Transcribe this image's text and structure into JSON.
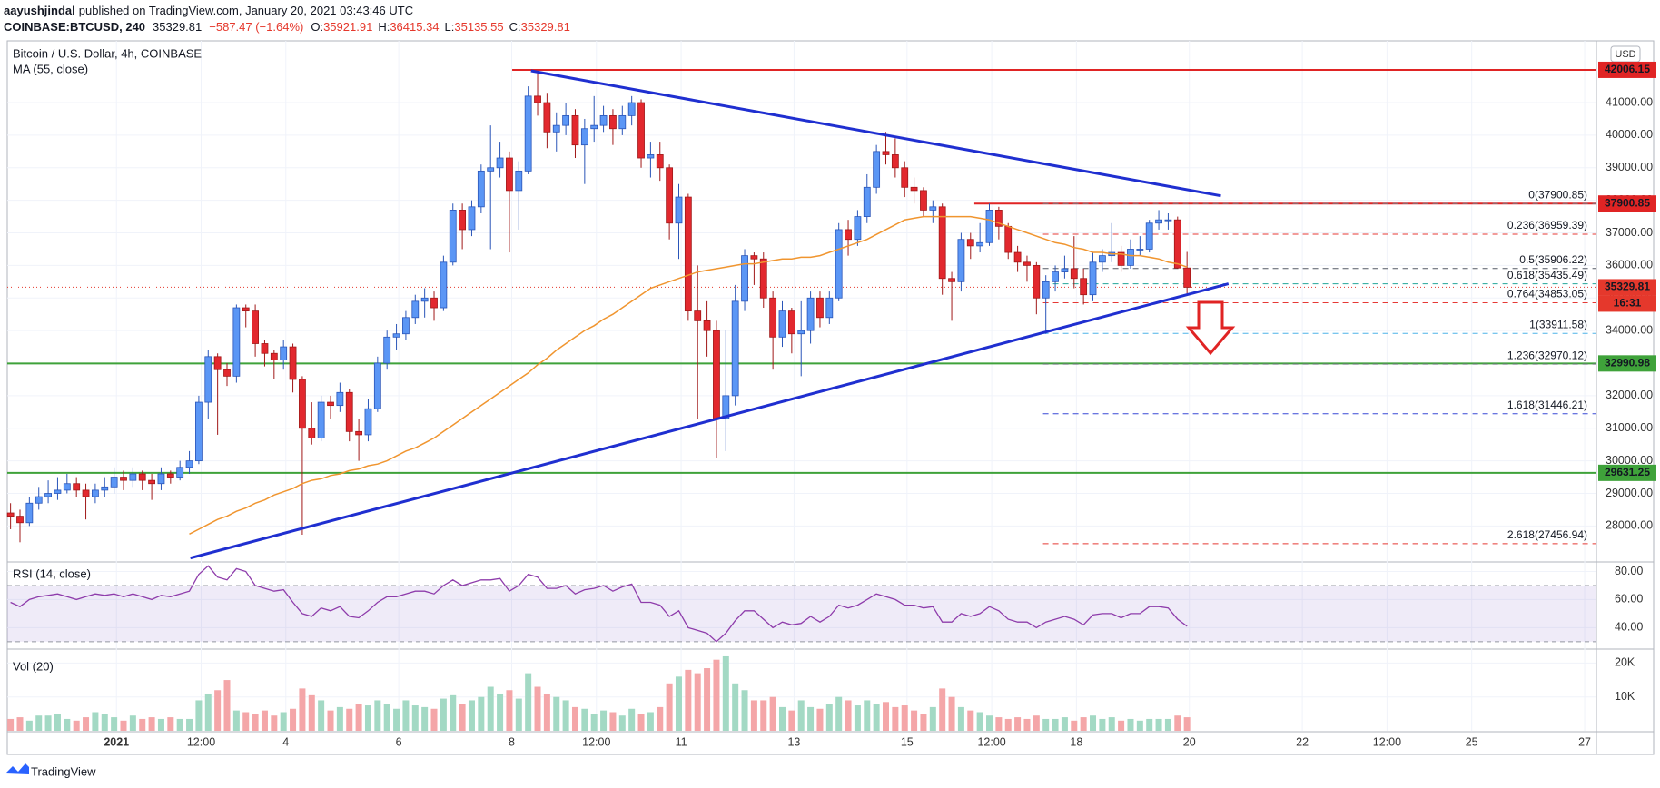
{
  "header": {
    "author": "aayushjindal",
    "published": "published on TradingView.com, January 20, 2021 03:43:46 UTC",
    "symbol": "COINBASE:BTCUSD, 240",
    "last": 35329.81,
    "change": "−587.47 (−1.64%)",
    "ohlc": [
      {
        "label": "O:",
        "value": 35921.91
      },
      {
        "label": "H:",
        "value": 36415.34
      },
      {
        "label": "L:",
        "value": 35135.55
      },
      {
        "label": "C:",
        "value": 35329.81
      }
    ]
  },
  "brand": "TradingView",
  "chart_data": {
    "type": "candlestick",
    "title": "Bitcoin / U.S. Dollar, 4h, COINBASE",
    "currency": "USD",
    "up_color": "#5b96f5",
    "down_color": "#e2282e",
    "xlim": [
      -0.35,
      168.5
    ],
    "xticks": [
      {
        "value": 11.25,
        "label": "2021"
      },
      {
        "value": 20.25,
        "label": "12:00"
      },
      {
        "value": 29.25,
        "label": "4"
      },
      {
        "value": 41.25,
        "label": "6"
      },
      {
        "value": 53.25,
        "label": "8"
      },
      {
        "value": 62.25,
        "label": "12:00"
      },
      {
        "value": 71.25,
        "label": "11"
      },
      {
        "value": 83.25,
        "label": "13"
      },
      {
        "value": 95.25,
        "label": "15"
      },
      {
        "value": 104.25,
        "label": "12:00"
      },
      {
        "value": 113.25,
        "label": "18"
      },
      {
        "value": 125.25,
        "label": "20"
      },
      {
        "value": 137.25,
        "label": "22"
      },
      {
        "value": 146.25,
        "label": "12:00"
      },
      {
        "value": 155.25,
        "label": "25"
      },
      {
        "value": 167.25,
        "label": "27"
      }
    ],
    "ylim": [
      26923,
      42841
    ],
    "yticks": [
      {
        "value": 28000,
        "label": "28000.00"
      },
      {
        "value": 29000,
        "label": "29000.00"
      },
      {
        "value": 30000,
        "label": "30000.00"
      },
      {
        "value": 31000,
        "label": "31000.00"
      },
      {
        "value": 32000,
        "label": "32000.00"
      },
      {
        "value": 33000,
        "label": "33000.00"
      },
      {
        "value": 34000,
        "label": "34000.00"
      },
      {
        "value": 35000,
        "label": "35000.00"
      },
      {
        "value": 36000,
        "label": "36000.00"
      },
      {
        "value": 37000,
        "label": "37000.00"
      },
      {
        "value": 38000,
        "label": "38000.00"
      },
      {
        "value": 39000,
        "label": "39000.00"
      },
      {
        "value": 40000,
        "label": "40000.00"
      },
      {
        "value": 41000,
        "label": "41000.00"
      }
    ],
    "grid": true,
    "candles": {
      "open": 28400,
      "close": [
        28300,
        28100,
        28700,
        28900,
        29000,
        29100,
        29300,
        29100,
        28900,
        29100,
        29200,
        29500,
        29400,
        29600,
        29400,
        29300,
        29600,
        29500,
        29800,
        30000,
        31800,
        33200,
        32800,
        32600,
        34700,
        34600,
        33600,
        33300,
        33100,
        33500,
        32500,
        31000,
        30700,
        31800,
        31700,
        32100,
        30900,
        30800,
        31600,
        33000,
        33800,
        33900,
        34400,
        34900,
        35000,
        34700,
        36100,
        37700,
        37100,
        37800,
        38900,
        39000,
        39300,
        38300,
        38900,
        41200,
        41000,
        40100,
        40300,
        40600,
        39700,
        40200,
        40300,
        40600,
        40200,
        40600,
        41000,
        39300,
        39400,
        39000,
        37300,
        38100,
        34600,
        34300,
        34000,
        31300,
        32000,
        34900,
        36300,
        36200,
        35000,
        33800,
        34600,
        33900,
        34000,
        35000,
        34400,
        35000,
        37100,
        36800,
        37500,
        38400,
        39500,
        39400,
        39000,
        38400,
        38300,
        37700,
        37800,
        35600,
        35500,
        36800,
        36600,
        36700,
        37700,
        37200,
        36400,
        36100,
        36000,
        35000,
        35500,
        35800,
        35900,
        35600,
        35100,
        36100,
        36300,
        36400,
        36000,
        36500,
        36500,
        37300,
        37400,
        37400,
        35921.91,
        35329.81
      ],
      "high": [
        28700,
        28500,
        28900,
        29200,
        29400,
        29500,
        29600,
        29500,
        29300,
        29300,
        29500,
        29800,
        29700,
        29800,
        29700,
        29600,
        29800,
        29700,
        30000,
        30300,
        32000,
        33400,
        33300,
        33000,
        34800,
        34800,
        34800,
        33700,
        33400,
        33700,
        33600,
        32600,
        31800,
        32000,
        32000,
        32400,
        32200,
        31300,
        31900,
        33200,
        34000,
        34200,
        34600,
        35100,
        35300,
        35200,
        36300,
        37900,
        37900,
        38000,
        39100,
        40300,
        39800,
        39500,
        39200,
        41500,
        41950,
        41300,
        40700,
        41000,
        40800,
        40500,
        41200,
        40900,
        40800,
        40900,
        41200,
        41100,
        39800,
        39800,
        39100,
        38500,
        38200,
        36000,
        34900,
        34300,
        34000,
        35400,
        36500,
        36400,
        36400,
        35200,
        34900,
        34700,
        34900,
        35200,
        35200,
        35200,
        37300,
        37400,
        37700,
        38800,
        39700,
        40100,
        39900,
        39200,
        38700,
        38400,
        38000,
        37900,
        35800,
        37000,
        37000,
        37300,
        37900,
        37800,
        37300,
        36600,
        36300,
        36100,
        35700,
        36000,
        36300,
        36900,
        35900,
        36400,
        36500,
        37300,
        36600,
        36800,
        36900,
        37400,
        37700,
        37600,
        37500,
        36415.34
      ],
      "low": [
        27900,
        27500,
        28000,
        28500,
        28700,
        28800,
        29000,
        28900,
        28200,
        28700,
        28900,
        29000,
        29100,
        29200,
        29100,
        28800,
        29100,
        29300,
        29400,
        29600,
        29900,
        31300,
        30800,
        32300,
        32400,
        34100,
        33200,
        32900,
        32500,
        32800,
        32100,
        27730,
        30500,
        30600,
        31300,
        31500,
        30600,
        30000,
        30600,
        31500,
        32800,
        33400,
        33700,
        34200,
        34400,
        34300,
        34600,
        36000,
        36500,
        36900,
        37600,
        36500,
        38700,
        36400,
        37100,
        38800,
        40600,
        39600,
        39500,
        40000,
        39300,
        38500,
        39800,
        40100,
        39700,
        40000,
        40300,
        39000,
        38700,
        38600,
        36800,
        36200,
        34300,
        31300,
        33200,
        30100,
        30300,
        31700,
        34600,
        35400,
        34700,
        32800,
        33500,
        33300,
        32600,
        33600,
        34100,
        34200,
        34900,
        36300,
        36600,
        37300,
        38200,
        39100,
        38700,
        38100,
        37900,
        37500,
        37300,
        35100,
        34300,
        35200,
        36200,
        36400,
        36600,
        36800,
        36200,
        35800,
        35500,
        34500,
        33900,
        35200,
        35600,
        35300,
        34800,
        34900,
        35800,
        36100,
        35800,
        35900,
        36300,
        36400,
        37100,
        37100,
        35900,
        35135.55
      ]
    },
    "countdown": "16:31",
    "last_color": "#e5382c",
    "ma": {
      "name": "MA (55, close)",
      "color": "#f0952f",
      "values": [
        null,
        null,
        null,
        null,
        null,
        null,
        null,
        null,
        null,
        null,
        null,
        null,
        null,
        null,
        null,
        null,
        null,
        null,
        null,
        27750,
        27900,
        28050,
        28200,
        28300,
        28450,
        28550,
        28700,
        28800,
        28950,
        29050,
        29150,
        29300,
        29400,
        29450,
        29550,
        29600,
        29700,
        29750,
        29850,
        29900,
        30000,
        30150,
        30300,
        30400,
        30550,
        30700,
        30900,
        31100,
        31300,
        31500,
        31700,
        31900,
        32100,
        32300,
        32500,
        32700,
        32950,
        33150,
        33400,
        33600,
        33800,
        34000,
        34150,
        34350,
        34500,
        34700,
        34900,
        35100,
        35300,
        35400,
        35500,
        35600,
        35700,
        35800,
        35850,
        35900,
        35950,
        36000,
        36050,
        36050,
        36100,
        36150,
        36200,
        36200,
        36250,
        36250,
        36300,
        36400,
        36500,
        36600,
        36700,
        36800,
        36950,
        37100,
        37250,
        37400,
        37450,
        37500,
        37500,
        37500,
        37500,
        37500,
        37500,
        37450,
        37400,
        37300,
        37200,
        37100,
        37000,
        36900,
        36800,
        36700,
        36650,
        36550,
        36500,
        36400,
        36400,
        36350,
        36350,
        36300,
        36300,
        36250,
        36200,
        36100,
        36050,
        35950
      ]
    },
    "hlines": [
      {
        "value": 42006.15,
        "color": "#e02424",
        "start": 53.3
      },
      {
        "value": 37900.85,
        "color": "#e02424",
        "start": 102.4
      },
      {
        "value": 32990.98,
        "color": "#3fa23a"
      },
      {
        "value": 29631.25,
        "color": "#3fa23a"
      }
    ],
    "trendlines": [
      {
        "color": "#1f2fd0",
        "from": [
          55.3,
          41976
        ],
        "to": [
          128.6,
          38138
        ]
      },
      {
        "color": "#1f2fd0",
        "from": [
          19.1,
          27016
        ],
        "to": [
          129.4,
          35439
        ]
      }
    ],
    "fib": {
      "start": 109.7,
      "levels": [
        {
          "value": 37900.85,
          "label": "0(37900.85)",
          "color": "#787b86"
        },
        {
          "value": 36959.39,
          "label": "0.236(36959.39)",
          "color": "#e53935"
        },
        {
          "value": 35906.22,
          "label": "0.5(35906.22)",
          "color": "#555a66"
        },
        {
          "value": 35435.49,
          "label": "0.618(35435.49)",
          "color": "#26a69a"
        },
        {
          "value": 34853.05,
          "label": "0.764(34853.05)",
          "color": "#e53935"
        },
        {
          "value": 33911.58,
          "label": "1(33911.58)",
          "color": "#4fb3e8"
        },
        {
          "value": 32970.12,
          "label": "1.236(32970.12)",
          "color": "#787b86"
        },
        {
          "value": 31446.21,
          "label": "1.618(31446.21)",
          "color": "#3949d6"
        },
        {
          "value": 27456.94,
          "label": "2.618(27456.94)",
          "color": "#e53935"
        }
      ]
    },
    "rsi": {
      "name": "RSI (14, close)",
      "color": "#8e3cab",
      "band": [
        30,
        70
      ],
      "ylim": [
        26,
        85.5
      ],
      "yticks": [
        {
          "value": 40,
          "label": "40.00"
        },
        {
          "value": 60,
          "label": "60.00"
        },
        {
          "value": 80,
          "label": "80.00"
        }
      ],
      "values": [
        58,
        55,
        60,
        62,
        63,
        64,
        62,
        60,
        62,
        64,
        63,
        64,
        62,
        64,
        62,
        60,
        63,
        62,
        64,
        66,
        78,
        84,
        76,
        74,
        82,
        80,
        70,
        68,
        66,
        67,
        58,
        50,
        48,
        54,
        52,
        55,
        48,
        47,
        52,
        58,
        62,
        62,
        64,
        66,
        66,
        64,
        70,
        74,
        70,
        72,
        74,
        74,
        75,
        66,
        70,
        78,
        76,
        68,
        68,
        70,
        64,
        67,
        68,
        70,
        66,
        69,
        71,
        58,
        58,
        56,
        48,
        52,
        40,
        38,
        36,
        30,
        36,
        45,
        52,
        52,
        46,
        40,
        44,
        42,
        43,
        48,
        44,
        48,
        56,
        54,
        56,
        60,
        64,
        62,
        60,
        56,
        56,
        54,
        55,
        44,
        44,
        50,
        48,
        50,
        55,
        52,
        46,
        44,
        44,
        40,
        44,
        46,
        48,
        46,
        42,
        49,
        50,
        50,
        47,
        50,
        50,
        55,
        55,
        54,
        46,
        41
      ]
    },
    "volume": {
      "name": "Vol (20)",
      "up_color": "#a3d9c4",
      "down_color": "#f4a6a8",
      "ylim": [
        0,
        23600
      ],
      "yticks": [
        {
          "value": 10000,
          "label": "10K"
        },
        {
          "value": 20000,
          "label": "20K"
        }
      ],
      "values": [
        3500,
        4000,
        3000,
        4500,
        4500,
        5000,
        3500,
        3000,
        4000,
        5500,
        5000,
        4000,
        3000,
        4500,
        3500,
        4000,
        3500,
        4000,
        3500,
        3500,
        9000,
        11000,
        12000,
        15000,
        6000,
        5500,
        5000,
        6000,
        4500,
        5500,
        6500,
        12500,
        10500,
        9000,
        6000,
        7000,
        6500,
        8000,
        7500,
        9000,
        8000,
        6500,
        9000,
        7500,
        7000,
        6500,
        9500,
        10500,
        8000,
        9000,
        10000,
        13000,
        11000,
        12000,
        9500,
        17000,
        13000,
        11000,
        10000,
        9000,
        7000,
        6500,
        5000,
        6000,
        5500,
        4500,
        6500,
        5000,
        5500,
        7000,
        14000,
        16000,
        18000,
        17000,
        18500,
        21000,
        22000,
        14000,
        12000,
        9000,
        9000,
        10000,
        7000,
        6000,
        9000,
        7000,
        6500,
        8000,
        10000,
        9000,
        7500,
        9000,
        8000,
        8500,
        7000,
        7500,
        6000,
        5000,
        7000,
        12500,
        10000,
        7000,
        6000,
        5500,
        4500,
        4000,
        3500,
        4000,
        3500,
        4500,
        3500,
        3500,
        4000,
        3000,
        4000,
        4500,
        3500,
        4000,
        3000,
        3500,
        3000,
        3500,
        3500,
        3500,
        4500,
        4000
      ]
    }
  }
}
